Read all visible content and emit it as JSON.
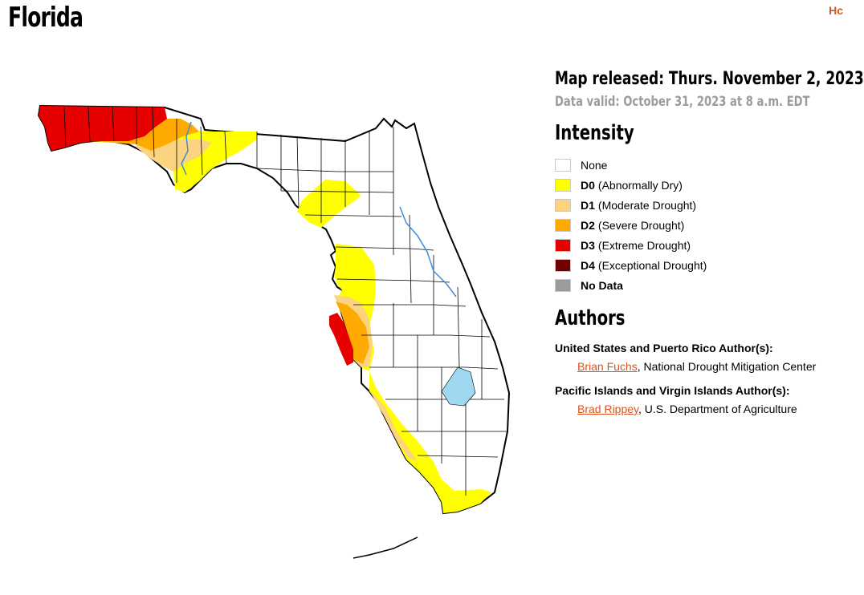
{
  "page": {
    "title": "Florida",
    "corner_link": "Hc"
  },
  "map_info": {
    "released": "Map released: Thurs. November 2, 2023",
    "valid": "Data valid: October 31, 2023 at 8 a.m. EDT"
  },
  "intensity": {
    "heading": "Intensity",
    "items": [
      {
        "code": "",
        "label": "None",
        "color": "#ffffff"
      },
      {
        "code": "D0",
        "label": "(Abnormally Dry)",
        "color": "#ffff00"
      },
      {
        "code": "D1",
        "label": "(Moderate Drought)",
        "color": "#fcd37f"
      },
      {
        "code": "D2",
        "label": "(Severe Drought)",
        "color": "#ffaa00"
      },
      {
        "code": "D3",
        "label": "(Extreme Drought)",
        "color": "#e60000"
      },
      {
        "code": "D4",
        "label": "(Exceptional Drought)",
        "color": "#730000"
      },
      {
        "code": "",
        "label": "No Data",
        "color": "#9b9b9b"
      }
    ]
  },
  "authors": {
    "heading": "Authors",
    "groups": [
      {
        "label": "United States and Puerto Rico Author(s):",
        "name": "Brian Fuchs",
        "org": ", National Drought Mitigation Center"
      },
      {
        "label": "Pacific Islands and Virgin Islands Author(s):",
        "name": "Brad Rippey",
        "org": ", U.S. Department of Agriculture"
      }
    ]
  },
  "map": {
    "colors": {
      "none": "#ffffff",
      "d0": "#ffff00",
      "d1": "#fcd37f",
      "d2": "#ffaa00",
      "d3": "#e60000",
      "water": "#9fd8f0",
      "river": "#3a8fd9",
      "outline": "#000000"
    }
  }
}
